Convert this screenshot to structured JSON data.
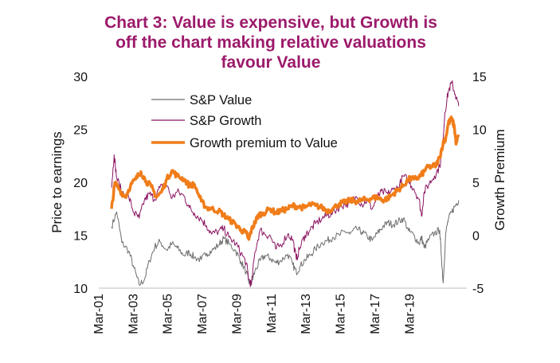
{
  "chart_data": {
    "type": "line",
    "title_lines": [
      "Chart 3: Value is expensive, but Growth is",
      "off the chart making relative valuations",
      "favour Value"
    ],
    "title_color": "#9c1a6b",
    "ylabel": "Price to earnings",
    "y2label": "Growth Premium",
    "ylim": [
      10,
      30
    ],
    "y2lim": [
      -5,
      15
    ],
    "yticks": [
      "10",
      "15",
      "20",
      "25",
      "30"
    ],
    "y2ticks": [
      "-5",
      "0",
      "5",
      "10",
      "15"
    ],
    "xticks": [
      "Mar-01",
      "Mar-03",
      "Mar-05",
      "Mar-07",
      "Mar-09",
      "Mar-11",
      "Mar-13",
      "Mar-15",
      "Mar-17",
      "Mar-19"
    ],
    "grid": false,
    "legend_position": "top-center",
    "series": [
      {
        "name": "S&P Value",
        "axis": "left",
        "color": "#6e6e6e",
        "width": 1,
        "x": [
          2001.0,
          2001.3,
          2001.6,
          2002.0,
          2002.3,
          2002.6,
          2002.9,
          2003.2,
          2003.5,
          2003.8,
          2004.2,
          2004.5,
          2004.8,
          2005.2,
          2005.5,
          2005.8,
          2006.2,
          2006.5,
          2006.8,
          2007.2,
          2007.5,
          2007.8,
          2008.2,
          2008.5,
          2008.8,
          2008.95,
          2009.1,
          2009.3,
          2009.6,
          2009.9,
          2010.2,
          2010.5,
          2010.8,
          2011.2,
          2011.5,
          2011.7,
          2011.9,
          2012.2,
          2012.5,
          2012.8,
          2013.2,
          2013.5,
          2013.8,
          2014.2,
          2014.5,
          2014.8,
          2015.2,
          2015.5,
          2015.8,
          2016.1,
          2016.4,
          2016.7,
          2017.0,
          2017.3,
          2017.6,
          2017.9,
          2018.2,
          2018.5,
          2018.8,
          2018.95,
          2019.1,
          2019.4,
          2019.7,
          2020.0,
          2020.1,
          2020.2,
          2020.35,
          2020.5,
          2020.7,
          2020.9,
          2021.1
        ],
        "y": [
          15.8,
          17.2,
          14.3,
          13.5,
          11.9,
          10.3,
          10.8,
          12.6,
          13.9,
          14.4,
          13.6,
          14.2,
          13.8,
          13.1,
          13.4,
          12.9,
          12.7,
          13.3,
          13.5,
          14.1,
          14.7,
          14.2,
          13.5,
          12.5,
          11.5,
          10.6,
          10.4,
          11.6,
          12.6,
          13.1,
          12.8,
          12.4,
          12.6,
          13.2,
          12.2,
          11.5,
          12.0,
          12.7,
          13.1,
          13.7,
          14.3,
          14.5,
          14.8,
          15.0,
          15.4,
          15.1,
          15.6,
          15.3,
          14.9,
          14.5,
          15.2,
          15.8,
          16.2,
          16.0,
          16.3,
          16.6,
          15.4,
          15.0,
          14.2,
          14.8,
          13.8,
          14.7,
          15.2,
          15.5,
          13.0,
          10.5,
          15.2,
          16.5,
          17.2,
          17.8,
          18.3
        ]
      },
      {
        "name": "S&P Growth",
        "axis": "left",
        "color": "#8b1561",
        "width": 1,
        "x": [
          2001.0,
          2001.15,
          2001.3,
          2001.6,
          2002.0,
          2002.3,
          2002.6,
          2002.9,
          2003.2,
          2003.5,
          2003.8,
          2004.2,
          2004.5,
          2004.8,
          2005.2,
          2005.5,
          2005.8,
          2006.2,
          2006.5,
          2006.8,
          2007.2,
          2007.5,
          2007.8,
          2008.2,
          2008.5,
          2008.8,
          2008.95,
          2009.1,
          2009.3,
          2009.6,
          2009.9,
          2010.2,
          2010.5,
          2010.8,
          2011.2,
          2011.5,
          2011.7,
          2011.9,
          2012.2,
          2012.5,
          2012.8,
          2013.2,
          2013.5,
          2013.8,
          2014.2,
          2014.5,
          2014.8,
          2015.2,
          2015.5,
          2015.8,
          2016.1,
          2016.4,
          2016.7,
          2017.0,
          2017.3,
          2017.6,
          2017.9,
          2018.2,
          2018.5,
          2018.8,
          2018.95,
          2019.1,
          2019.4,
          2019.7,
          2020.0,
          2020.15,
          2020.3,
          2020.5,
          2020.7,
          2020.9,
          2021.1
        ],
        "y": [
          19.5,
          22.6,
          20.4,
          19.1,
          18.6,
          17.1,
          16.6,
          18.3,
          18.9,
          18.4,
          19.5,
          19.7,
          18.5,
          19.1,
          18.7,
          17.6,
          17.1,
          16.5,
          15.9,
          15.1,
          15.4,
          15.6,
          14.8,
          14.2,
          13.3,
          12.4,
          10.8,
          10.3,
          13.4,
          15.5,
          15.1,
          14.9,
          13.7,
          14.1,
          15.1,
          14.6,
          12.7,
          13.8,
          15.0,
          15.5,
          16.1,
          16.6,
          16.9,
          17.1,
          17.7,
          17.9,
          18.1,
          18.6,
          17.9,
          18.3,
          17.5,
          18.7,
          19.1,
          18.9,
          19.3,
          19.5,
          20.6,
          20.1,
          19.4,
          18.4,
          16.8,
          19.1,
          19.9,
          20.6,
          21.5,
          23.1,
          26.6,
          28.6,
          29.4,
          28.3,
          27.2
        ]
      },
      {
        "name": "Growth premium to Value",
        "axis": "right",
        "color": "#f07d1a",
        "width": 3.5,
        "x": [
          2001.0,
          2001.2,
          2001.5,
          2001.8,
          2002.1,
          2002.4,
          2002.7,
          2003.0,
          2003.3,
          2003.6,
          2003.9,
          2004.2,
          2004.5,
          2004.8,
          2005.2,
          2005.5,
          2005.8,
          2006.2,
          2006.5,
          2006.8,
          2007.2,
          2007.5,
          2007.8,
          2008.2,
          2008.5,
          2008.8,
          2008.95,
          2009.1,
          2009.3,
          2009.5,
          2009.8,
          2010.2,
          2010.5,
          2010.8,
          2011.2,
          2011.5,
          2011.8,
          2012.2,
          2012.5,
          2012.8,
          2013.2,
          2013.5,
          2013.8,
          2014.2,
          2014.5,
          2014.8,
          2015.2,
          2015.5,
          2015.8,
          2016.1,
          2016.4,
          2016.7,
          2017.0,
          2017.3,
          2017.6,
          2017.9,
          2018.2,
          2018.5,
          2018.8,
          2019.0,
          2019.2,
          2019.5,
          2019.8,
          2020.0,
          2020.2,
          2020.35,
          2020.5,
          2020.7,
          2020.85,
          2020.95,
          2021.1
        ],
        "y": [
          2.5,
          5.0,
          4.2,
          3.6,
          4.7,
          5.3,
          6.0,
          5.1,
          4.6,
          3.6,
          4.1,
          5.3,
          6.1,
          5.6,
          5.3,
          4.7,
          4.8,
          3.2,
          2.6,
          2.5,
          2.3,
          1.9,
          1.5,
          1.0,
          0.5,
          0.2,
          -0.4,
          0.5,
          1.2,
          1.9,
          2.1,
          2.5,
          2.1,
          2.3,
          2.5,
          2.8,
          2.7,
          2.6,
          2.9,
          2.8,
          2.6,
          2.3,
          2.5,
          3.0,
          3.1,
          3.3,
          3.2,
          3.3,
          3.4,
          3.5,
          3.6,
          3.3,
          3.5,
          3.9,
          4.3,
          4.7,
          5.3,
          5.3,
          5.5,
          5.8,
          6.3,
          6.5,
          6.6,
          7.4,
          8.7,
          9.2,
          10.6,
          11.0,
          10.2,
          8.6,
          9.5
        ]
      }
    ]
  }
}
